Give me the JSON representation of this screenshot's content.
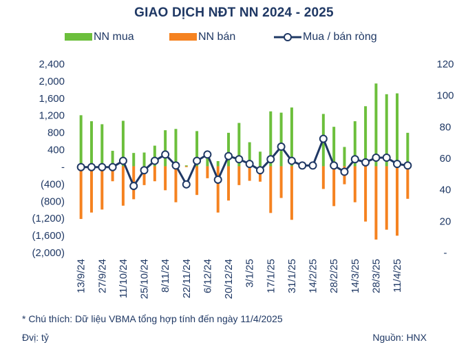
{
  "chart_data": {
    "type": "bar",
    "title": "GIAO DỊCH NĐT NN 2024 - 2025",
    "legend": {
      "position": "top",
      "items": [
        {
          "name": "NN mua",
          "color": "#6cbf3c",
          "kind": "bar"
        },
        {
          "name": "NN bán",
          "color": "#f58220",
          "kind": "bar"
        },
        {
          "name": "Mua / bán ròng",
          "color": "#1f3864",
          "kind": "line"
        }
      ]
    },
    "y_left": {
      "ticks": [
        2400,
        2000,
        1600,
        1200,
        800,
        400,
        0,
        -400,
        -800,
        -1200,
        -1600,
        -2000
      ],
      "tick_labels": [
        "2,400",
        "2,000",
        "1,600",
        "1,200",
        "800",
        "400",
        "-",
        "(400)",
        "(800)",
        "(1,200)",
        "(1,600)",
        "(2,000)"
      ],
      "ylim": [
        -2000,
        2400
      ]
    },
    "y_right": {
      "ticks": [
        120,
        100,
        80,
        60,
        40,
        20,
        0
      ],
      "tick_labels": [
        "120",
        "100",
        "80",
        "60",
        "40",
        "20",
        "-"
      ],
      "ylim": [
        0,
        120
      ]
    },
    "x_labels": [
      "13/9/24",
      "27/9/24",
      "11/10/24",
      "25/10/24",
      "8/11/24",
      "22/11/24",
      "6/12/24",
      "20/12/24",
      "3/1/25",
      "17/1/25",
      "31/1/25",
      "14/2/25",
      "28/2/25",
      "14/3/25",
      "28/3/25",
      "11/4/25"
    ],
    "x_label_at_point": [
      0,
      2,
      4,
      6,
      8,
      10,
      12,
      14,
      16,
      18,
      20,
      22,
      24,
      26,
      28,
      30
    ],
    "grid": false,
    "series": [
      {
        "name": "NN mua",
        "axis": "left",
        "values": [
          1190,
          1050,
          980,
          360,
          1060,
          310,
          320,
          480,
          840,
          870,
          20,
          820,
          260,
          120,
          780,
          1010,
          560,
          340,
          1280,
          1250,
          1370,
          10,
          20,
          1220,
          920,
          450,
          1050,
          1400,
          1930,
          1680,
          1700,
          780
        ]
      },
      {
        "name": "NN bán",
        "axis": "left",
        "values": [
          -1230,
          -1080,
          -1010,
          -350,
          -920,
          -770,
          -440,
          -350,
          -560,
          -840,
          -20,
          -670,
          -280,
          -1080,
          -800,
          -440,
          -340,
          -360,
          -1090,
          -740,
          -1250,
          -20,
          -30,
          -530,
          -930,
          -420,
          -840,
          -1290,
          -1710,
          -1480,
          -1620,
          -760
        ]
      },
      {
        "name": "Mua / bán ròng",
        "axis": "right",
        "values": [
          54,
          54,
          54,
          54,
          58,
          42,
          52,
          58,
          62,
          55,
          43,
          58,
          62,
          46,
          61,
          59,
          56,
          52,
          59,
          67,
          58,
          55,
          55,
          72,
          55,
          51,
          59,
          57,
          60,
          60,
          56,
          55
        ]
      }
    ]
  },
  "footer": {
    "note": "* Chú thích: Dữ liệu VBMA tổng hợp tính đến ngày 11/4/2025",
    "unit": "Đvị: tỷ",
    "source": "Nguồn: HNX"
  }
}
